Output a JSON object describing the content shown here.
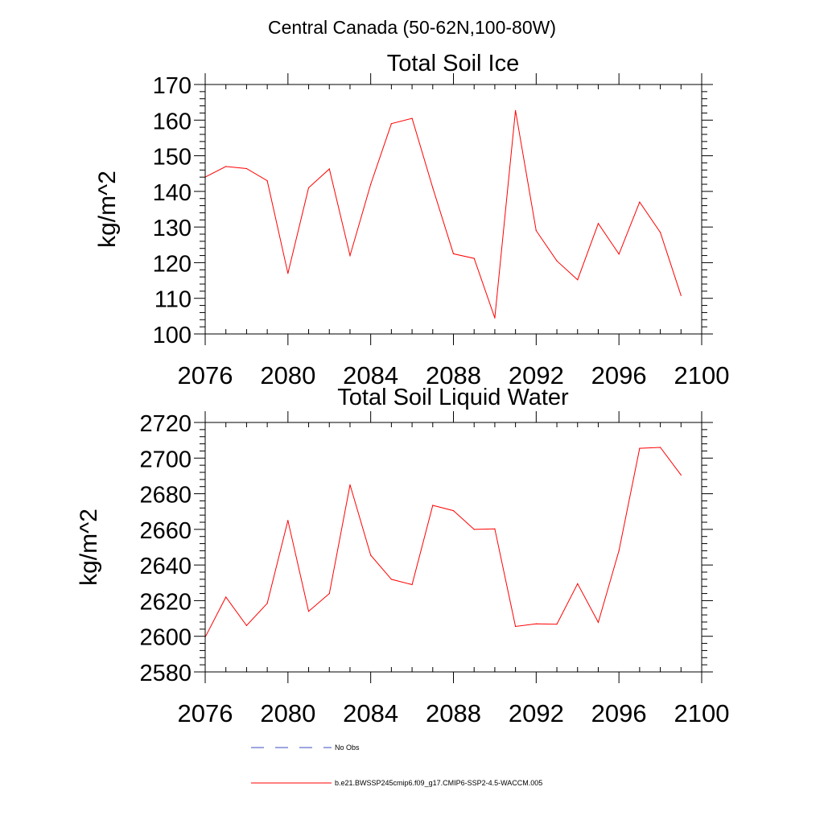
{
  "figure": {
    "suptitle": "Central Canada (50-62N,100-80W)"
  },
  "chart_data": [
    {
      "type": "line",
      "title": "Total Soil Ice",
      "xlabel": "",
      "ylabel": "kg/m^2",
      "xlim": [
        2076,
        2100
      ],
      "ylim": [
        100,
        170
      ],
      "xticks": [
        2076,
        2080,
        2084,
        2088,
        2092,
        2096,
        2100
      ],
      "yticks": [
        100,
        110,
        120,
        130,
        140,
        150,
        160,
        170
      ],
      "series": [
        {
          "name": "b.e21.BWSSP245cmip6.f09_g17.CMIP6-SSP2-4.5-WACCM.005",
          "color": "#ff0000",
          "x": [
            2076,
            2077,
            2078,
            2079,
            2080,
            2081,
            2082,
            2083,
            2084,
            2085,
            2086,
            2087,
            2088,
            2089,
            2090,
            2091,
            2092,
            2093,
            2094,
            2095,
            2096,
            2097,
            2098,
            2099
          ],
          "values": [
            144,
            147,
            146.4,
            143,
            117,
            141,
            146.3,
            122,
            142,
            159,
            160.5,
            141,
            122.5,
            121.2,
            104.5,
            162.7,
            129,
            120.5,
            115.2,
            131,
            122.4,
            137,
            128.5,
            110.8
          ]
        }
      ]
    },
    {
      "type": "line",
      "title": "Total Soil Liquid Water",
      "xlabel": "",
      "ylabel": "kg/m^2",
      "xlim": [
        2076,
        2100
      ],
      "ylim": [
        2580,
        2720
      ],
      "xticks": [
        2076,
        2080,
        2084,
        2088,
        2092,
        2096,
        2100
      ],
      "yticks": [
        2580,
        2600,
        2620,
        2640,
        2660,
        2680,
        2700,
        2720
      ],
      "series": [
        {
          "name": "b.e21.BWSSP245cmip6.f09_g17.CMIP6-SSP2-4.5-WACCM.005",
          "color": "#ff0000",
          "x": [
            2076,
            2077,
            2078,
            2079,
            2080,
            2081,
            2082,
            2083,
            2084,
            2085,
            2086,
            2087,
            2088,
            2089,
            2090,
            2091,
            2092,
            2093,
            2094,
            2095,
            2096,
            2097,
            2098,
            2099
          ],
          "values": [
            2599.5,
            2622,
            2606,
            2618.5,
            2665,
            2614,
            2624,
            2685,
            2645.5,
            2632,
            2629,
            2673.5,
            2670.5,
            2660,
            2660.3,
            2605.5,
            2607,
            2606.8,
            2629.5,
            2607.8,
            2648,
            2705.5,
            2706,
            2690.5
          ]
        }
      ]
    }
  ],
  "legend": {
    "entries": [
      {
        "label": "No Obs",
        "color": "#3b4cc0",
        "style": "dashed"
      },
      {
        "label": "b.e21.BWSSP245cmip6.f09_g17.CMIP6-SSP2-4.5-WACCM.005",
        "color": "#ff0000",
        "style": "solid"
      }
    ]
  }
}
